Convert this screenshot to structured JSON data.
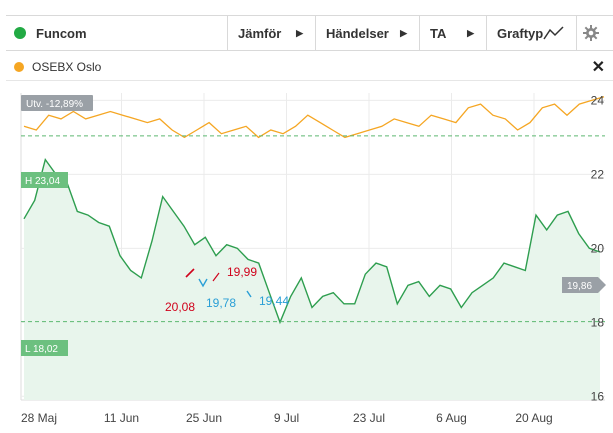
{
  "toolbar": {
    "instrument": "Funcom",
    "instrument_color": "#22aa44",
    "buttons": [
      "Jämför",
      "Händelser",
      "TA",
      "Graftyp"
    ],
    "graftyp_icon": "line-chart-icon",
    "settings_icon": "gear-icon"
  },
  "legend": {
    "label": "OSEBX Oslo",
    "color": "#f5a623",
    "close_icon": "close-icon"
  },
  "chart_data": {
    "type": "line",
    "x_tick_labels": [
      "28 Maj",
      "11 Jun",
      "25 Jun",
      "9 Jul",
      "23 Jul",
      "6 Aug",
      "20 Aug"
    ],
    "y_tick_labels": [
      "16",
      "18",
      "20",
      "22",
      "24"
    ],
    "ylim": [
      15.9,
      24.2
    ],
    "grid": true,
    "series": [
      {
        "name": "Funcom",
        "color": "#2e9e4f",
        "fill": "#e8f5ec",
        "values": [
          20.8,
          21.3,
          22.4,
          22.0,
          21.8,
          21.0,
          20.9,
          20.7,
          20.6,
          19.8,
          19.4,
          19.2,
          20.2,
          21.4,
          21.0,
          20.6,
          20.1,
          20.3,
          19.8,
          20.1,
          20.0,
          19.7,
          19.6,
          18.8,
          18.0,
          18.7,
          19.2,
          18.4,
          18.7,
          18.8,
          18.5,
          18.5,
          19.3,
          19.6,
          19.5,
          18.5,
          19.0,
          19.1,
          18.7,
          19.0,
          18.9,
          18.4,
          18.8,
          19.0,
          19.2,
          19.6,
          19.5,
          19.4,
          20.9,
          20.5,
          20.9,
          21.0,
          20.4,
          20.0,
          19.9
        ]
      },
      {
        "name": "OSEBX Oslo",
        "color": "#f5a623",
        "values": [
          23.3,
          23.2,
          23.6,
          23.5,
          23.7,
          23.5,
          23.6,
          23.7,
          23.6,
          23.5,
          23.4,
          23.5,
          23.2,
          23.0,
          23.2,
          23.4,
          23.1,
          23.2,
          23.3,
          23.0,
          23.2,
          23.1,
          23.3,
          23.6,
          23.4,
          23.2,
          23.0,
          23.1,
          23.2,
          23.3,
          23.5,
          23.4,
          23.3,
          23.6,
          23.5,
          23.4,
          23.8,
          23.9,
          23.6,
          23.5,
          23.2,
          23.4,
          23.8,
          23.9,
          23.6,
          23.9,
          24.0,
          24.1
        ]
      }
    ],
    "reference_lines": [
      {
        "label": "H 23,04",
        "value": 23.04
      },
      {
        "label": "L 18,02",
        "value": 18.02
      }
    ],
    "change_tag": "Utv. -12,89%",
    "last_value_tag": "19,86",
    "annotations": [
      {
        "text": "19,99",
        "color": "#d0021b"
      },
      {
        "text": "20,08",
        "color": "#d0021b"
      },
      {
        "text": "19,78",
        "color": "#2a9fd6"
      },
      {
        "text": "19,44",
        "color": "#2a9fd6"
      }
    ]
  }
}
